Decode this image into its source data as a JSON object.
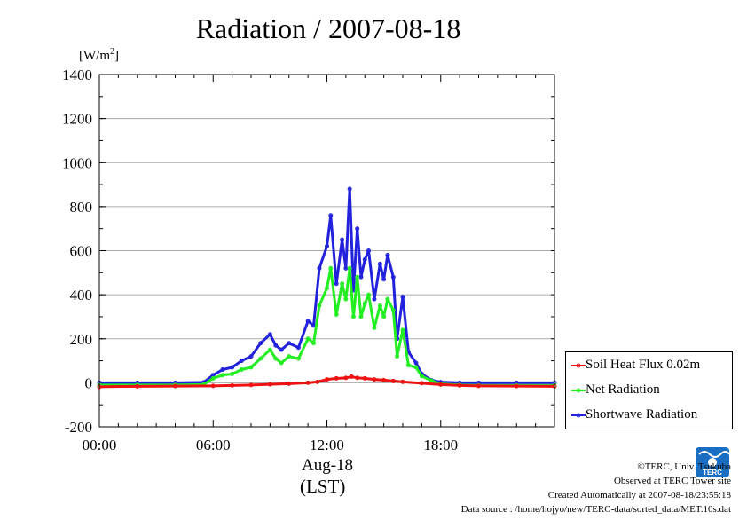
{
  "title": "Radiation / 2007-08-18",
  "unit_label_prefix": "[W/m",
  "unit_label_exp": "2",
  "unit_label_suffix": "]",
  "date_label": "Aug-18",
  "tz_label": "(LST)",
  "credits": {
    "copyright": "©TERC, Univ. Tsukuba",
    "observed": "Observed at TERC Tower site",
    "created": "Created Automatically at 2007-08-18/23:55:18",
    "source": "Data source : /home/hojyo/new/TERC-data/sorted_data/MET.10s.dat"
  },
  "logo": {
    "text": "TERC",
    "color": "#1a6ec2"
  },
  "chart_data": {
    "type": "line",
    "title": "Radiation / 2007-08-18",
    "ylabel": "[W/m2]",
    "xlabel": "Aug-18 (LST)",
    "xlim": [
      0,
      24
    ],
    "ylim": [
      -200,
      1400
    ],
    "x_ticks": [
      "00:00",
      "06:00",
      "12:00",
      "18:00"
    ],
    "x_tick_values": [
      0,
      6,
      12,
      18
    ],
    "y_ticks": [
      -200,
      0,
      200,
      400,
      600,
      800,
      1000,
      1200,
      1400
    ],
    "grid": true,
    "legend_position": "right-bottom",
    "series": [
      {
        "name": "Soil Heat Flux 0.02m",
        "color": "#ee1111",
        "x": [
          0,
          2,
          4,
          6,
          7,
          8,
          9,
          10,
          11,
          11.5,
          12,
          12.5,
          13,
          13.3,
          13.6,
          14,
          14.5,
          15,
          15.5,
          16,
          17,
          18,
          19,
          20,
          22,
          24
        ],
        "y": [
          -18,
          -16,
          -15,
          -14,
          -12,
          -10,
          -7,
          -4,
          0,
          4,
          15,
          20,
          22,
          28,
          22,
          20,
          15,
          12,
          8,
          4,
          -2,
          -8,
          -12,
          -14,
          -15,
          -16
        ]
      },
      {
        "name": "Net Radiation",
        "color": "#22ee22",
        "x": [
          0,
          2,
          4,
          5.5,
          6,
          6.5,
          7,
          7.5,
          8,
          8.5,
          9,
          9.3,
          9.6,
          10,
          10.5,
          11,
          11.3,
          11.6,
          12,
          12.2,
          12.5,
          12.8,
          13,
          13.2,
          13.4,
          13.6,
          13.8,
          14,
          14.2,
          14.5,
          14.8,
          15,
          15.2,
          15.5,
          15.7,
          16,
          16.3,
          16.7,
          17,
          17.5,
          18,
          19,
          20,
          22,
          24
        ],
        "y": [
          -10,
          -10,
          -10,
          -8,
          20,
          35,
          40,
          60,
          70,
          110,
          150,
          110,
          90,
          120,
          110,
          200,
          180,
          350,
          430,
          520,
          310,
          450,
          380,
          520,
          300,
          480,
          300,
          360,
          400,
          250,
          350,
          300,
          380,
          330,
          120,
          240,
          80,
          70,
          30,
          10,
          -5,
          -10,
          -12,
          -12,
          -12
        ]
      },
      {
        "name": "Shortwave Radiation",
        "color": "#2222dd",
        "x": [
          0,
          2,
          4,
          5.5,
          6,
          6.5,
          7,
          7.5,
          8,
          8.5,
          9,
          9.3,
          9.6,
          10,
          10.5,
          11,
          11.3,
          11.6,
          12,
          12.2,
          12.5,
          12.8,
          13,
          13.2,
          13.4,
          13.6,
          13.8,
          14,
          14.2,
          14.5,
          14.8,
          15,
          15.2,
          15.5,
          15.7,
          16,
          16.3,
          16.7,
          17,
          17.5,
          18,
          19,
          20,
          22,
          24
        ],
        "y": [
          0,
          0,
          0,
          2,
          35,
          60,
          70,
          100,
          120,
          180,
          220,
          170,
          150,
          180,
          160,
          280,
          260,
          520,
          620,
          760,
          450,
          650,
          520,
          880,
          420,
          700,
          480,
          560,
          600,
          380,
          540,
          470,
          580,
          480,
          200,
          390,
          140,
          90,
          40,
          12,
          3,
          0,
          0,
          0,
          0
        ]
      }
    ]
  }
}
